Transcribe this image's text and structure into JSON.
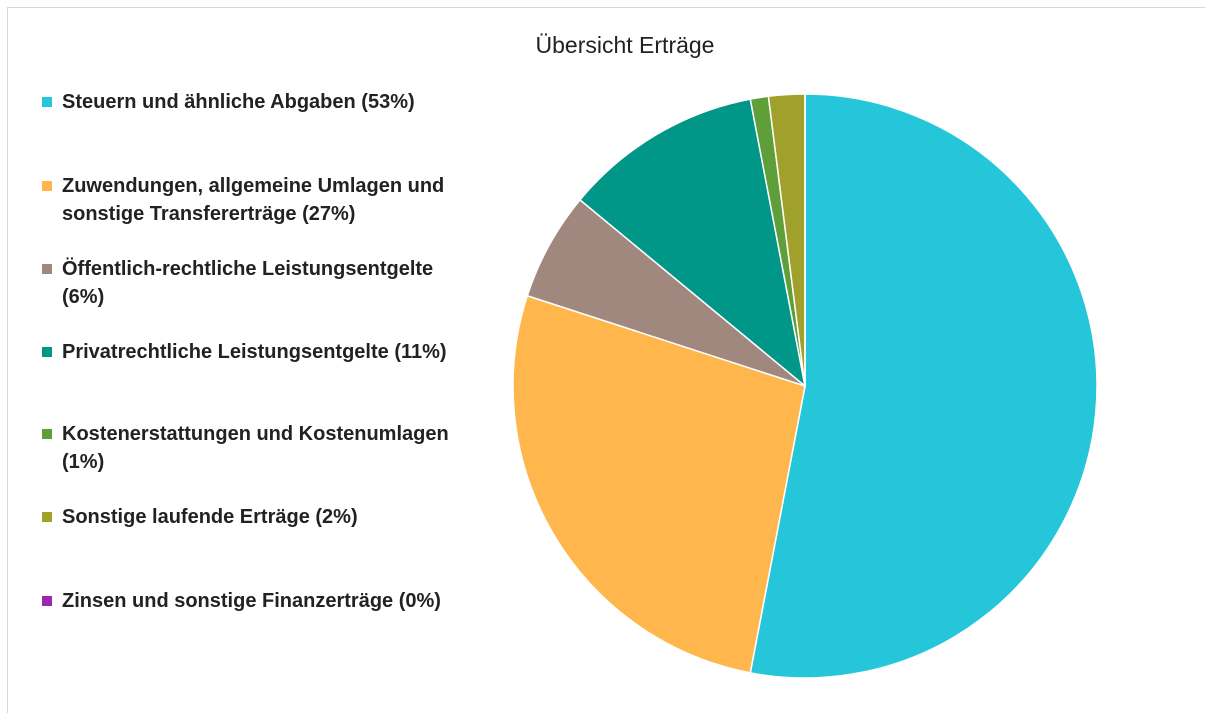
{
  "chart_data": {
    "type": "pie",
    "title": "Übersicht Erträge",
    "series": [
      {
        "name": "Steuern und ähnliche Abgaben (53%)",
        "color": "#26c6da",
        "values": [
          53
        ]
      },
      {
        "name": "Zuwendungen, allgemeine Umlagen und sonstige Transfererträge (27%)",
        "color": "#ffb74d",
        "values": [
          27
        ]
      },
      {
        "name": "Öffentlich-rechtliche Leistungsentgelte (6%)",
        "color": "#a1887f",
        "values": [
          6
        ]
      },
      {
        "name": "Privatrechtliche Leistungsentgelte (11%)",
        "color": "#009688",
        "values": [
          11
        ]
      },
      {
        "name": "Kostenerstattungen und Kostenumlagen (1%)",
        "color": "#5f9f3a",
        "values": [
          1
        ]
      },
      {
        "name": "Sonstige laufende Erträge (2%)",
        "color": "#a0a12a",
        "values": [
          2
        ]
      },
      {
        "name": "Zinsen und sonstige Finanzerträge (0%)",
        "color": "#9c27b0",
        "values": [
          0
        ]
      }
    ]
  }
}
